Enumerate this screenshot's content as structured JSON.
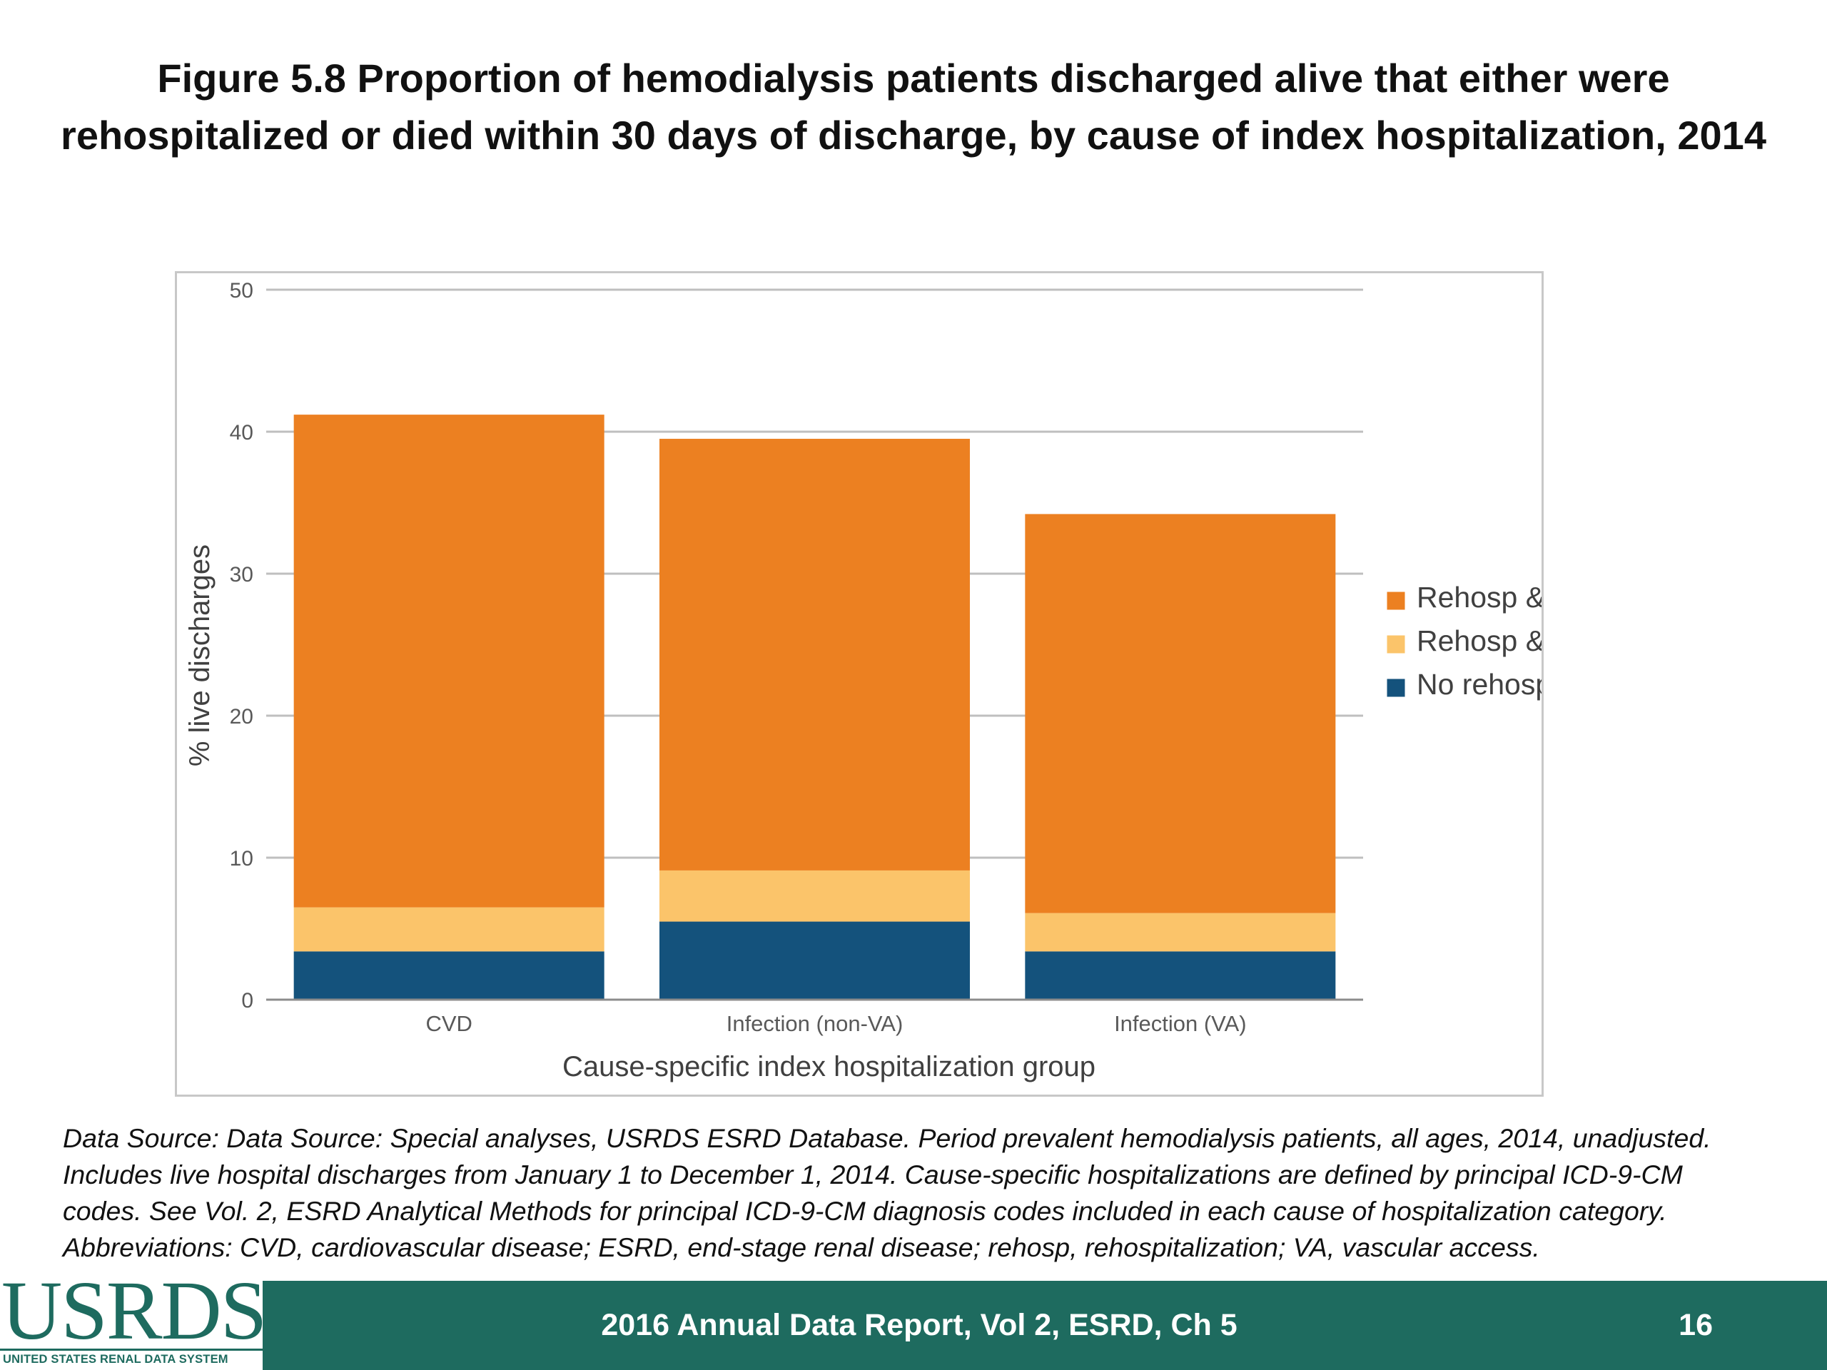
{
  "slide": {
    "title_lines": [
      "Figure 5.8 Proportion of hemodialysis patients discharged alive that either were",
      "rehospitalized or died within 30 days of discharge, by cause of index hospitalization, 2014"
    ],
    "source_lines": [
      "Data Source: Data Source: Special analyses, USRDS ESRD Database. Period prevalent hemodialysis patients, all ages, 2014, unadjusted.",
      "Includes live hospital discharges from January 1 to December 1, 2014. Cause-specific hospitalizations are defined by principal ICD-9-CM",
      "codes. See Vol. 2, ESRD Analytical Methods for principal ICD-9-CM diagnosis codes included in each cause of hospitalization category.",
      "Abbreviations: CVD, cardiovascular disease; ESRD, end-stage renal disease; rehosp, rehospitalization; VA, vascular access."
    ],
    "footer_text": "2016 Annual Data Report, Vol 2, ESRD, Ch 5",
    "page_number": "16",
    "logo_text": "USRDS",
    "logo_subtitle": "UNITED STATES RENAL DATA SYSTEM"
  },
  "chart_data": {
    "type": "bar",
    "stacked": true,
    "categories": [
      "CVD",
      "Infection (non-VA)",
      "Infection (VA)"
    ],
    "series": [
      {
        "name": "No rehosp & died",
        "color": "#14527c",
        "values": [
          3.4,
          5.5,
          3.4
        ]
      },
      {
        "name": "Rehosp & died",
        "color": "#fbc46a",
        "values": [
          3.1,
          3.6,
          2.7
        ]
      },
      {
        "name": "Rehosp & alive",
        "color": "#ec8021",
        "values": [
          34.7,
          30.4,
          28.1
        ]
      }
    ],
    "legend_order": [
      "Rehosp & alive",
      "Rehosp & died",
      "No rehosp & died"
    ],
    "legend_position": "right",
    "xlabel": "Cause-specific index hospitalization group",
    "ylabel": "% live discharges",
    "ylim": [
      0,
      50
    ],
    "yticks": [
      0,
      10,
      20,
      30,
      40,
      50
    ],
    "grid": true,
    "grid_color": "#bfbfbf"
  }
}
